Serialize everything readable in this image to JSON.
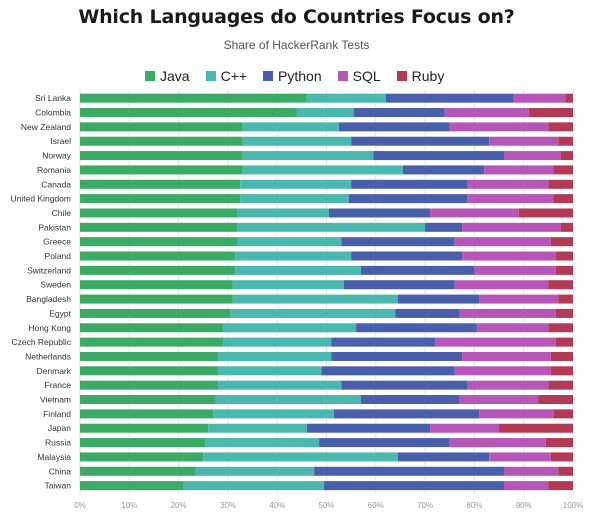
{
  "chart_data": {
    "type": "bar",
    "orientation": "horizontal",
    "stacked": true,
    "title": "Which Languages do Countries Focus on?",
    "subtitle": "Share of HackerRank Tests",
    "xlabel": "",
    "ylabel": "",
    "xlim": [
      0,
      100
    ],
    "x_ticks": [
      "0%",
      "10%",
      "20%",
      "30%",
      "40%",
      "50%",
      "60%",
      "70%",
      "80%",
      "90%",
      "100%"
    ],
    "grid": true,
    "legend_position": "top",
    "categories": [
      "Sri Lanka",
      "Colombia",
      "New Zealand",
      "Israel",
      "Norway",
      "Romania",
      "Canada",
      "United Kingdom",
      "Chile",
      "Pakistan",
      "Greece",
      "Poland",
      "Switzerland",
      "Sweden",
      "Bangladesh",
      "Egypt",
      "Hong Kong",
      "Czech Republic",
      "Netherlands",
      "Denmark",
      "France",
      "Vietnam",
      "Finland",
      "Japan",
      "Russia",
      "Malaysia",
      "China",
      "Taiwan"
    ],
    "series": [
      {
        "name": "Java",
        "color": "#3aaa64",
        "values": [
          46,
          44,
          33,
          33,
          33,
          33,
          32.5,
          32.5,
          32,
          32,
          32,
          31.5,
          31.5,
          31,
          31,
          30.5,
          29,
          29,
          28,
          28,
          28,
          27.5,
          27,
          26,
          25.5,
          25,
          23.5,
          21
        ]
      },
      {
        "name": "C++",
        "color": "#4ab8ae",
        "values": [
          16,
          11.5,
          19.5,
          22,
          26.5,
          32.5,
          22.5,
          22,
          18.5,
          38,
          21,
          23.5,
          25.5,
          22.5,
          33.5,
          33.5,
          27,
          22,
          23,
          21,
          25,
          29.5,
          24.5,
          20,
          23,
          39.5,
          24,
          28.5
        ]
      },
      {
        "name": "Python",
        "color": "#4a5fab",
        "values": [
          26,
          18.5,
          22.5,
          28,
          26.5,
          16.5,
          23.5,
          24,
          20.5,
          7.5,
          23,
          22.5,
          23,
          22.5,
          16.5,
          13,
          24.5,
          21,
          26.5,
          27,
          25.5,
          20,
          29.5,
          25,
          26.5,
          18.5,
          38.5,
          36.5
        ]
      },
      {
        "name": "SQL",
        "color": "#b556b8",
        "values": [
          10.5,
          17,
          20,
          14,
          11.5,
          14,
          16.5,
          17.5,
          18,
          20,
          19.5,
          19,
          16.5,
          19,
          16,
          19.5,
          14.5,
          24.5,
          18,
          19.5,
          16.5,
          16,
          15,
          14,
          19.5,
          12.5,
          11,
          9
        ]
      },
      {
        "name": "Ruby",
        "color": "#b33a55",
        "values": [
          1.5,
          9,
          5,
          3,
          2.5,
          4,
          5,
          4,
          11,
          2.5,
          4.5,
          3.5,
          3.5,
          5,
          3,
          3.5,
          5,
          3.5,
          4.5,
          4.5,
          5,
          7,
          4,
          15,
          5.5,
          4.5,
          3,
          5
        ]
      }
    ]
  }
}
